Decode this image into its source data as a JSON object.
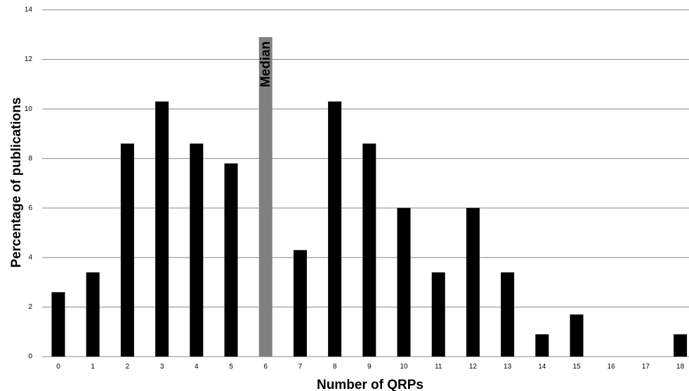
{
  "chart_data": {
    "type": "bar",
    "title": "",
    "xlabel": "Number of QRPs",
    "ylabel": "Percentage of publications",
    "categories": [
      "0",
      "1",
      "2",
      "3",
      "4",
      "5",
      "6",
      "7",
      "8",
      "9",
      "10",
      "11",
      "12",
      "13",
      "14",
      "15",
      "16",
      "17",
      "18"
    ],
    "values": [
      2.6,
      3.4,
      8.6,
      10.3,
      8.6,
      7.8,
      12.9,
      4.3,
      10.3,
      8.6,
      6.0,
      3.4,
      6.0,
      3.4,
      0.9,
      1.7,
      0,
      0,
      0.9
    ],
    "ylim": [
      0,
      14
    ],
    "yticks": [
      "0",
      "2",
      "4",
      "6",
      "8",
      "10",
      "12",
      "14"
    ],
    "grid": true,
    "bar_color": "#000000",
    "highlight": {
      "category": "6",
      "color": "#808080",
      "label": "Median"
    }
  }
}
